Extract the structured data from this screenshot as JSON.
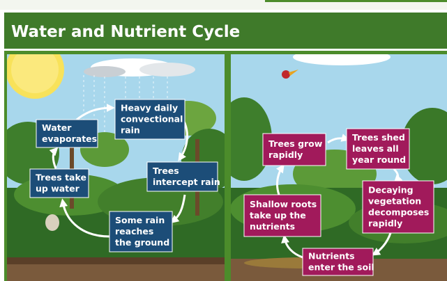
{
  "header": {
    "title": "Water and Nutrient Cycle"
  },
  "water_cycle": {
    "nodes": [
      {
        "lines": [
          "Water",
          "evaporates"
        ]
      },
      {
        "lines": [
          "Heavy daily",
          "convectional",
          "rain"
        ]
      },
      {
        "lines": [
          "Trees",
          "intercept rain"
        ]
      },
      {
        "lines": [
          "Some rain",
          "reaches",
          "the ground"
        ]
      },
      {
        "lines": [
          "Trees take",
          "up water"
        ]
      }
    ]
  },
  "nutrient_cycle": {
    "nodes": [
      {
        "lines": [
          "Trees grow",
          "rapidly"
        ]
      },
      {
        "lines": [
          "Trees shed",
          "leaves all",
          "year round"
        ]
      },
      {
        "lines": [
          "Decaying",
          "vegetation",
          "decomposes",
          "rapidly"
        ]
      },
      {
        "lines": [
          "Nutrients",
          "enter the soil"
        ]
      },
      {
        "lines": [
          "Shallow roots",
          "take up the",
          "nutrients"
        ]
      }
    ]
  }
}
